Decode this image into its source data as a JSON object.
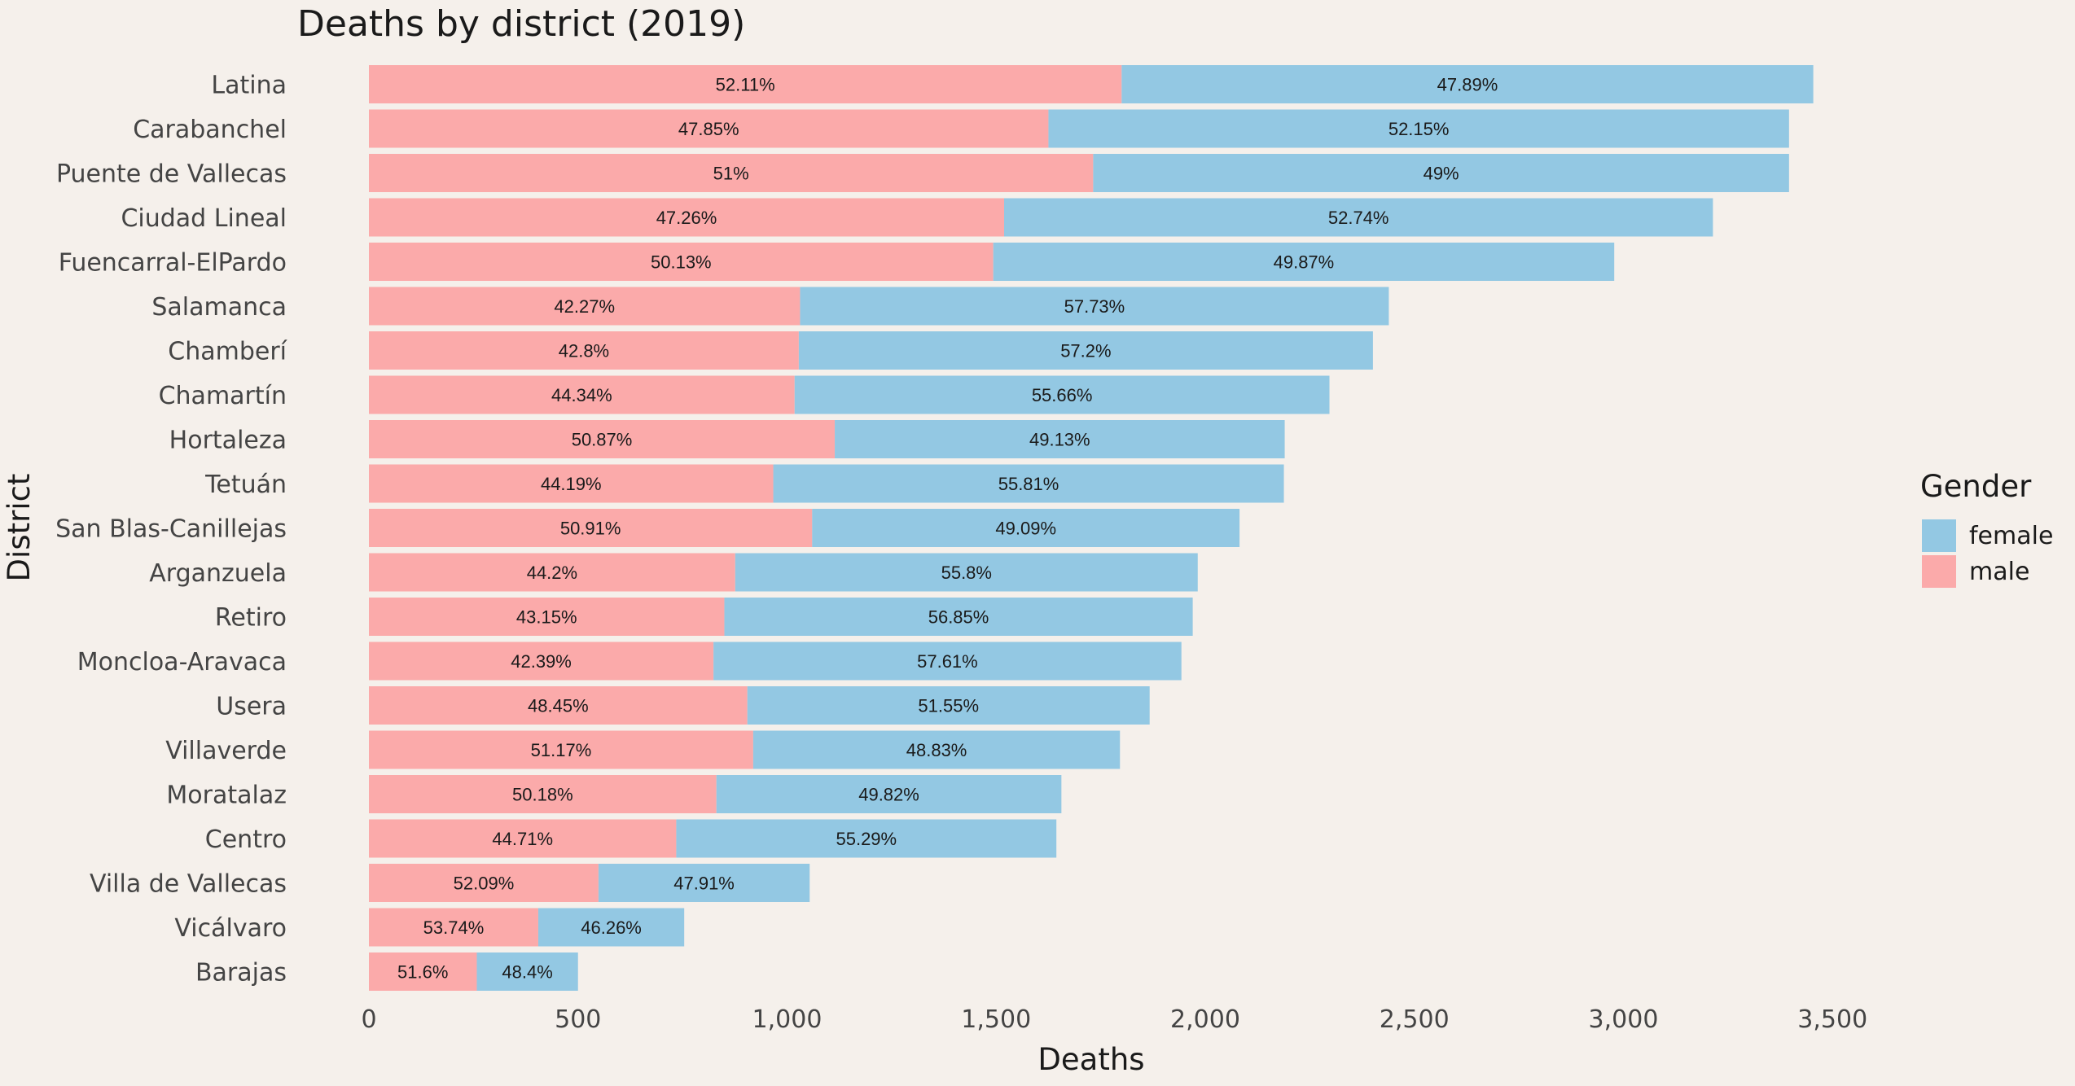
{
  "chart_data": {
    "type": "bar",
    "orientation": "horizontal",
    "stacked": true,
    "title": "Deaths by district (2019)",
    "xlabel": "Deaths",
    "ylabel": "District",
    "xlim": [
      0,
      3800
    ],
    "x_ticks": [
      0,
      500,
      1000,
      1500,
      2000,
      2500,
      3000,
      3500
    ],
    "x_tick_labels": [
      "0",
      "500",
      "1,000",
      "1,500",
      "2,000",
      "2,500",
      "3,000",
      "3,500"
    ],
    "grid": false,
    "legend": {
      "title": "Gender",
      "position": "right",
      "entries": [
        "female",
        "male"
      ]
    },
    "colors": {
      "male": "#fbaaaa",
      "female": "#93c8e3",
      "background": "#f5f0eb"
    },
    "categories": [
      "Latina",
      "Carabanchel",
      "Puente de Vallecas",
      "Ciudad Lineal",
      "Fuencarral-ElPardo",
      "Salamanca",
      "Chamberí",
      "Chamartín",
      "Hortaleza",
      "Tetuán",
      "San Blas-Canillejas",
      "Arganzuela",
      "Retiro",
      "Moncloa-Aravaca",
      "Usera",
      "Villaverde",
      "Moratalaz",
      "Centro",
      "Villa de Vallecas",
      "Vicálvaro",
      "Barajas"
    ],
    "series": [
      {
        "name": "male",
        "values": [
          1800,
          1625,
          1732,
          1519,
          1493,
          1031,
          1028,
          1018,
          1114,
          967,
          1060,
          876,
          850,
          824,
          905,
          919,
          831,
          735,
          549,
          405,
          258
        ],
        "labels": [
          "52.11%",
          "47.85%",
          "51%",
          "47.26%",
          "50.13%",
          "42.27%",
          "42.8%",
          "44.34%",
          "50.87%",
          "44.19%",
          "50.91%",
          "44.2%",
          "43.15%",
          "42.39%",
          "48.45%",
          "51.17%",
          "50.18%",
          "44.71%",
          "52.09%",
          "53.74%",
          "51.6%"
        ]
      },
      {
        "name": "female",
        "values": [
          1654,
          1771,
          1664,
          1695,
          1485,
          1408,
          1373,
          1279,
          1076,
          1221,
          1022,
          1106,
          1120,
          1119,
          962,
          877,
          825,
          909,
          505,
          349,
          242
        ],
        "labels": [
          "47.89%",
          "52.15%",
          "49%",
          "52.74%",
          "49.87%",
          "57.73%",
          "57.2%",
          "55.66%",
          "49.13%",
          "55.81%",
          "49.09%",
          "55.8%",
          "56.85%",
          "57.61%",
          "51.55%",
          "48.83%",
          "49.82%",
          "55.29%",
          "47.91%",
          "46.26%",
          "48.4%"
        ]
      }
    ]
  }
}
